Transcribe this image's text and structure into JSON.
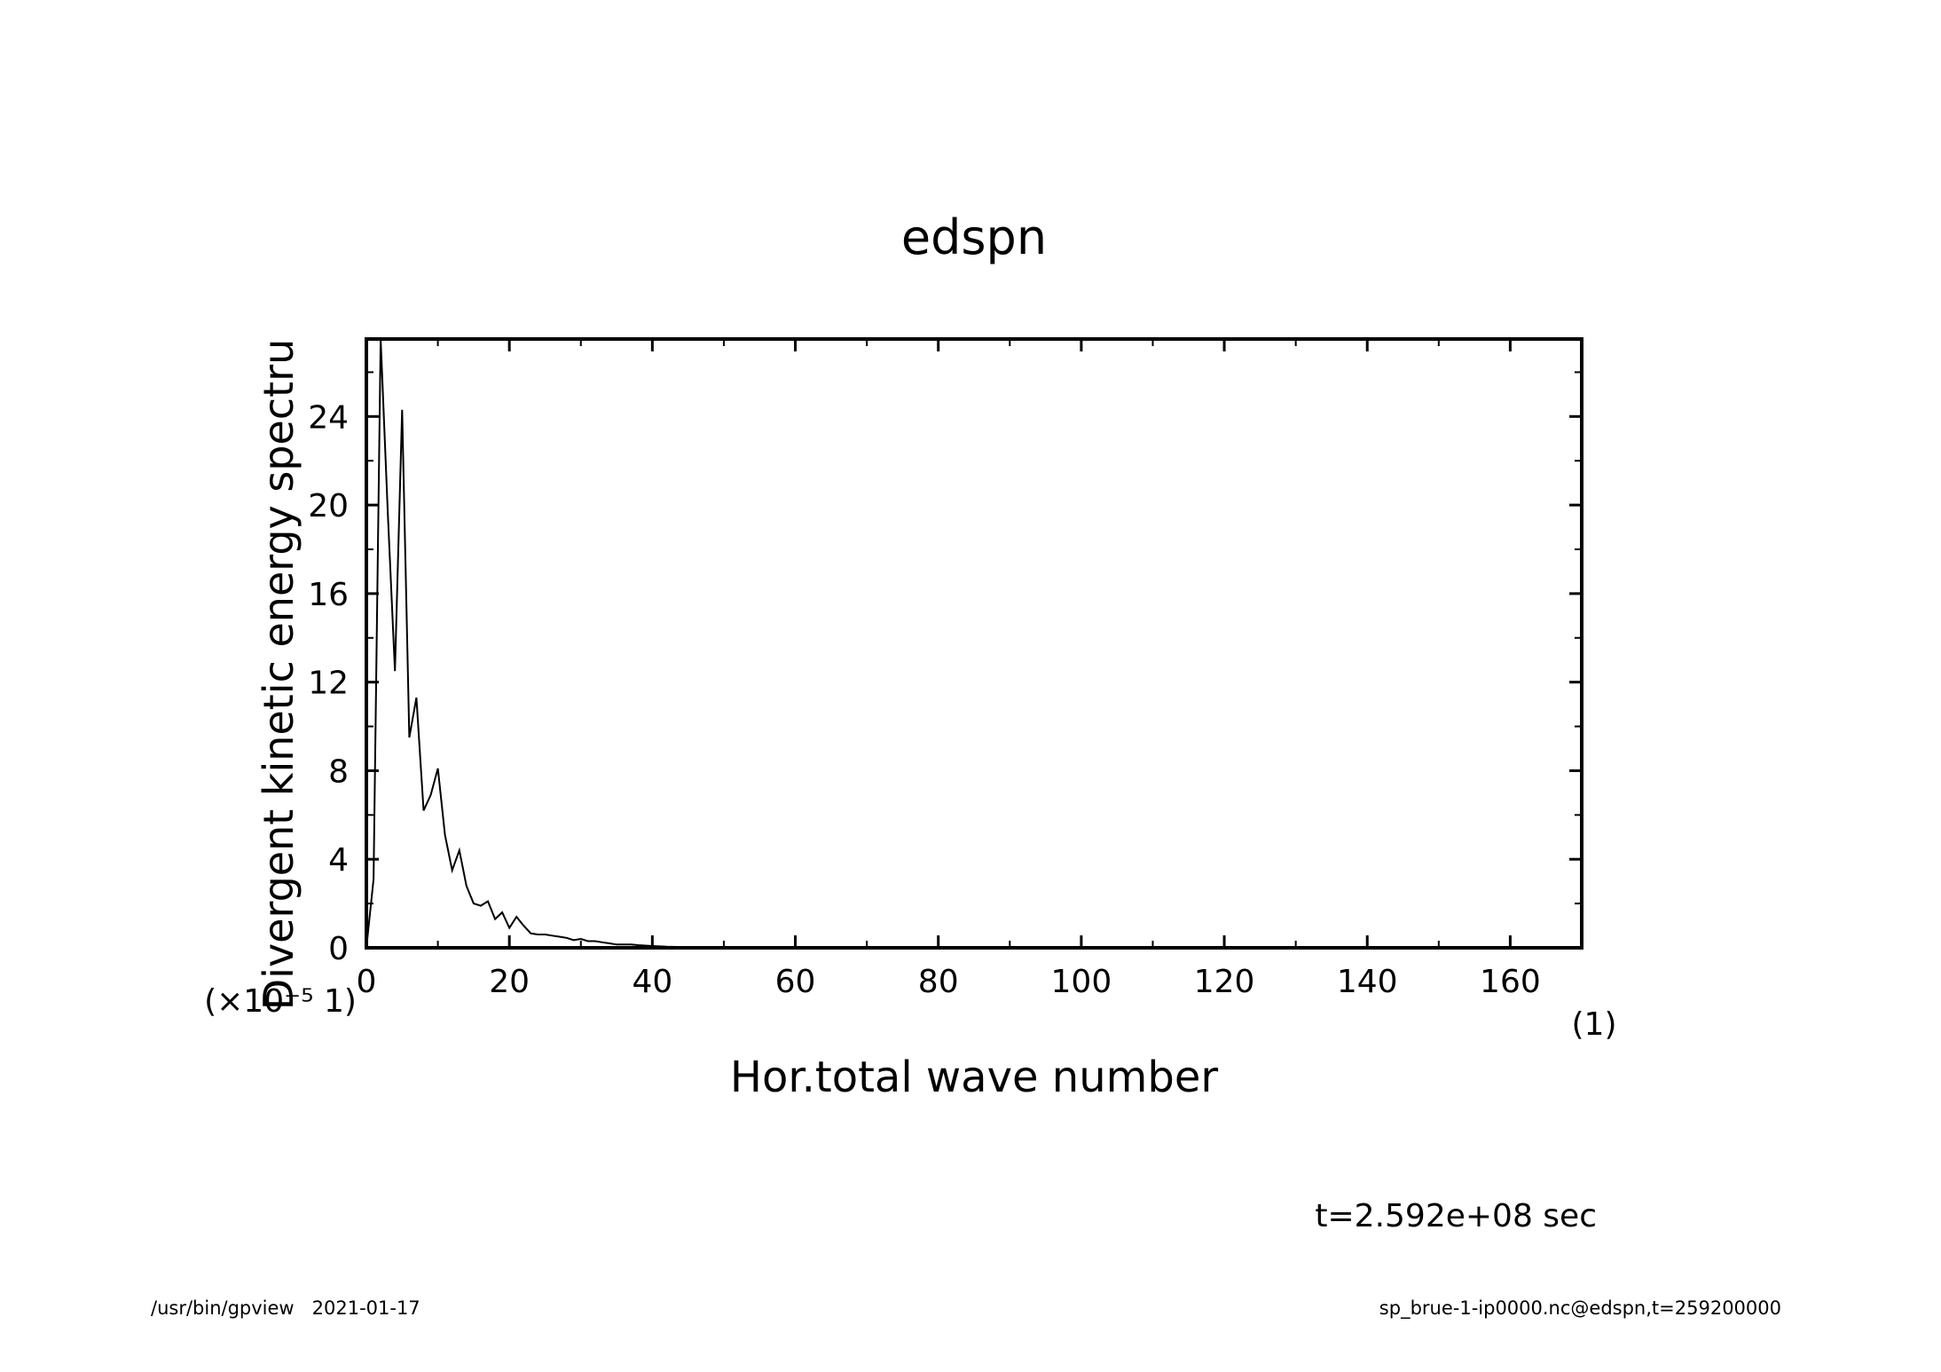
{
  "chart_data": {
    "type": "line",
    "title": "edspn",
    "xlabel": "Hor.total wave number",
    "ylabel": "Divergent kinetic energy spectru",
    "x_unit_label": "(1)",
    "y_scale_label": "(×10⁻⁵ 1)",
    "xlim": [
      0,
      170
    ],
    "ylim": [
      0,
      27.5
    ],
    "x_ticks": [
      0,
      20,
      40,
      60,
      80,
      100,
      120,
      140,
      160
    ],
    "x_tick_labels": [
      "0",
      "20",
      "40",
      "60",
      "80",
      "100",
      "120",
      "140",
      "160"
    ],
    "y_ticks": [
      0,
      4,
      8,
      12,
      16,
      20,
      24
    ],
    "y_tick_labels": [
      "0",
      "4",
      "8",
      "12",
      "16",
      "20",
      "24"
    ],
    "grid": false,
    "series": [
      {
        "x": [
          0,
          1,
          2,
          3,
          4,
          5,
          6,
          7,
          8,
          9,
          10,
          11,
          12,
          13,
          14,
          15,
          16,
          17,
          18,
          19,
          20,
          21,
          22,
          23,
          24,
          25,
          26,
          27,
          28,
          29,
          30,
          31,
          32,
          33,
          34,
          35,
          36,
          37,
          38,
          39,
          40,
          42,
          45,
          50,
          60,
          80,
          100,
          120,
          140,
          160,
          170
        ],
        "y": [
          0,
          3.1,
          27.5,
          19.6,
          12.5,
          24.3,
          9.5,
          11.3,
          6.2,
          6.9,
          8.1,
          5.1,
          3.5,
          4.4,
          2.8,
          2.0,
          1.9,
          2.1,
          1.3,
          1.6,
          0.9,
          1.4,
          1.0,
          0.65,
          0.6,
          0.6,
          0.55,
          0.5,
          0.45,
          0.35,
          0.4,
          0.3,
          0.3,
          0.25,
          0.2,
          0.15,
          0.15,
          0.15,
          0.12,
          0.1,
          0.08,
          0.05,
          0.03,
          0.02,
          0.01,
          0.0,
          0.0,
          0.0,
          0.0,
          0.0,
          0.0
        ]
      }
    ]
  },
  "annotations": {
    "time": "t=2.592e+08 sec"
  },
  "footer": {
    "left": "/usr/bin/gpview   2021-01-17",
    "right": "sp_brue-1-ip0000.nc@edspn,t=259200000"
  }
}
